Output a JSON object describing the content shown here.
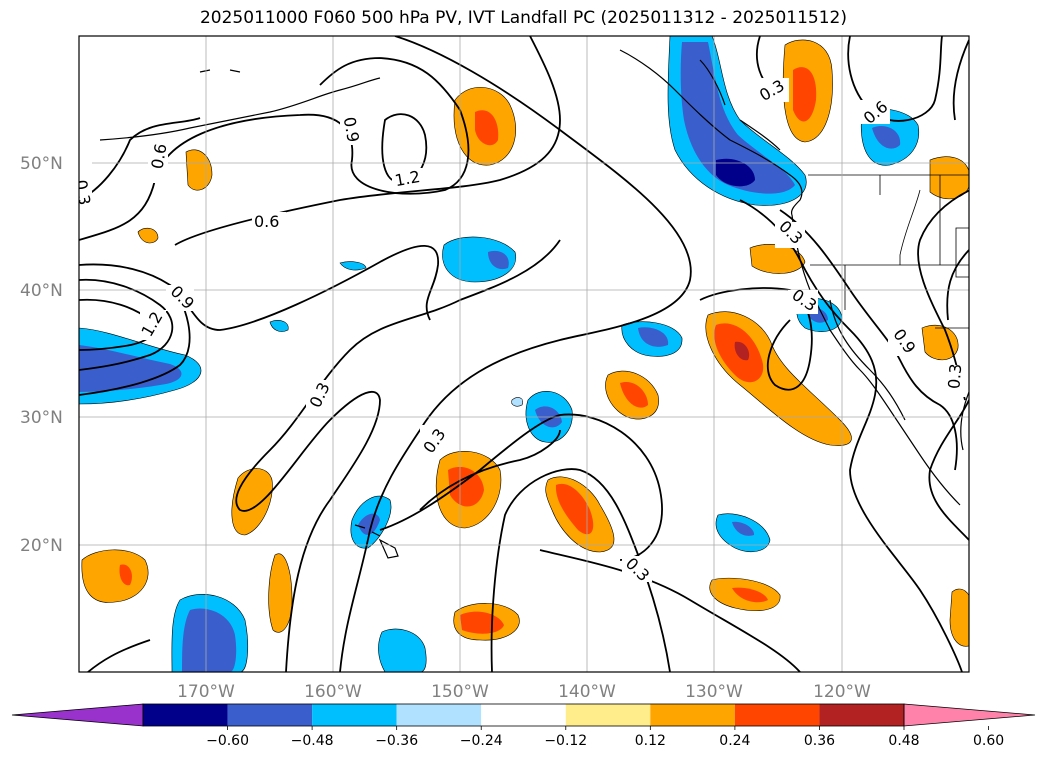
{
  "title": "2025011000 F060 500 hPa PV, IVT Landfall PC (2025011312 - 2025011512)",
  "map": {
    "lon_range": [
      -180,
      -110
    ],
    "lat_range": [
      10,
      60
    ],
    "lat_labels": [
      "50°N",
      "40°N",
      "30°N",
      "20°N"
    ],
    "lon_labels": [
      "170°W",
      "160°W",
      "150°W",
      "140°W",
      "130°W",
      "120°W"
    ],
    "grid": true
  },
  "colorbar": {
    "labels": [
      "−0.60",
      "−0.48",
      "−0.36",
      "−0.24",
      "−0.12",
      "0.12",
      "0.24",
      "0.36",
      "0.48",
      "0.60"
    ],
    "colors": [
      "#9932cc",
      "#00008b",
      "#3a5fcd",
      "#00bfff",
      "#b0e2ff",
      "#ffffff",
      "#ffec8b",
      "#ffa500",
      "#ff4500",
      "#b22222",
      "#ff82ab"
    ]
  },
  "contour_labels": [
    "0.3",
    "0.6",
    "0.9",
    "1.2",
    "0.3",
    "0.6",
    "0.9",
    "1.2",
    "0.3",
    "0.3",
    "0.3",
    "0.3",
    "0.3",
    "0.3",
    "0.6",
    "0.9",
    "0.3"
  ]
}
